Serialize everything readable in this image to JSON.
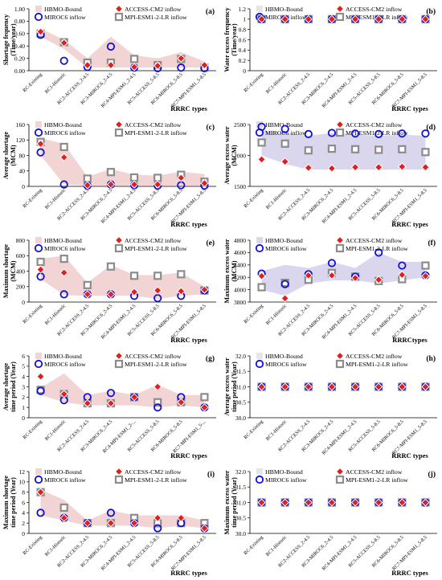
{
  "legend_labels": {
    "hbmo": "HBMO-Bound",
    "access": "ACCESS-CM2 inflow",
    "miroc": "MIROC6 inflow",
    "mpi": "MPI-ESM1-2-LR inflow"
  },
  "colors": {
    "hbmo_fill_red": "#f2d4d4",
    "hbmo_fill_purple": "#d9d6ee",
    "access": "#e0201f",
    "miroc": "#1010d0",
    "mpi": "#8c8c8c"
  },
  "chart_data": [
    {
      "type": "scatter",
      "panel_label": "(a)",
      "ylabel": [
        "Shortage fequency",
        "(Time/year)"
      ],
      "xlabel": "RRRC types",
      "ylim": [
        0,
        1
      ],
      "yticks": [
        "0.00",
        "0.20",
        "0.40",
        "0.60",
        "0.80",
        "1.00"
      ],
      "categories": [
        "RC-Existing",
        "RC1-Historic",
        "RC2-ACCESS_2-4.5",
        "RC3-MIROC6_2-4.5",
        "RC4-MPI-ESM1_2-4.5",
        "RC5-ACCESS_5-8.5",
        "RC6-MIROC6_5-8.5",
        "RC7-MPI-ESM1_5-8.5"
      ],
      "band_color": "red",
      "band_lower": [
        0.55,
        0.35,
        0.05,
        0.05,
        0.05,
        0.05,
        0.05,
        0.05
      ],
      "band_upper": [
        0.68,
        0.5,
        0.2,
        0.55,
        0.25,
        0.2,
        0.3,
        0.15
      ],
      "series": [
        {
          "key": "access",
          "values": [
            0.63,
            0.45,
            0.09,
            0.09,
            0.06,
            0.08,
            0.2,
            0.09
          ]
        },
        {
          "key": "miroc",
          "values": [
            0.58,
            0.16,
            0.06,
            0.39,
            0.05,
            0.04,
            0.05,
            0.04
          ]
        },
        {
          "key": "mpi",
          "values": [
            0.6,
            0.46,
            0.13,
            0.13,
            0.19,
            0.09,
            0.19,
            0.05
          ]
        }
      ]
    },
    {
      "type": "scatter",
      "panel_label": "(b)",
      "ylabel": [
        "Water excess frequency",
        "(Time/year)"
      ],
      "xlabel": "RRRC types",
      "ylim": [
        0,
        1.2
      ],
      "yticks": [
        "0",
        "0.2",
        "0.4",
        "0.6",
        "0.8",
        "1",
        "1.2"
      ],
      "categories": [
        "RC-Existing",
        "RC1-Historic",
        "RC2-ACCESS_2-4.5",
        "RC3-MIROC6_2-4.5",
        "RC4-MPI-ESM1_2-4.5",
        "RC5-ACCESS_5-8.5",
        "RC6-MIROC6_5-8.5",
        "RC7-MPI-ESM1_5-8.5"
      ],
      "band_color": "none",
      "band_lower": [],
      "band_upper": [],
      "series": [
        {
          "key": "access",
          "values": [
            1,
            1,
            1,
            1,
            1,
            1,
            1,
            1
          ]
        },
        {
          "key": "miroc",
          "values": [
            1,
            1,
            1,
            1,
            1,
            1,
            1,
            1
          ]
        },
        {
          "key": "mpi",
          "values": [
            1,
            1,
            1,
            1,
            1,
            1,
            1,
            1
          ]
        }
      ]
    },
    {
      "type": "scatter",
      "panel_label": "(c)",
      "ylabel": [
        "Average shortage",
        "(MCM)"
      ],
      "xlabel": "RRRC types",
      "ylim": [
        0,
        160
      ],
      "yticks": [
        "0",
        "40",
        "80",
        "120",
        "160"
      ],
      "categories": [
        "RC-Existing",
        "RC1-Historic",
        "RC2-ACCESS_2-4.5",
        "RC3-MIROC6_2-4.5",
        "RC4-MPI-ESM1_2-4.5",
        "RC5-ACCESS_5-8.5",
        "RC6-MIROC6_5-8.5",
        "RC7-MPI-ESM1_5-8.5"
      ],
      "band_color": "red",
      "band_lower": [
        80,
        5,
        2,
        2,
        2,
        2,
        2,
        2
      ],
      "band_upper": [
        125,
        110,
        25,
        45,
        30,
        28,
        38,
        32
      ],
      "series": [
        {
          "key": "access",
          "values": [
            110,
            75,
            3,
            5,
            5,
            5,
            22,
            8
          ]
        },
        {
          "key": "miroc",
          "values": [
            88,
            5,
            2,
            5,
            3,
            2,
            3,
            2
          ]
        },
        {
          "key": "mpi",
          "values": [
            115,
            102,
            20,
            37,
            23,
            22,
            30,
            12
          ]
        }
      ]
    },
    {
      "type": "scatter",
      "panel_label": "(d)",
      "ylabel": [
        "Average excess water",
        "(MCM)"
      ],
      "xlabel": "RRRC types",
      "ylim": [
        1500,
        2600
      ],
      "yticks": [
        "1500",
        "2000",
        "2500"
      ],
      "categories": [
        "RC-Existing",
        "RC1-Historic",
        "RC2-ACCESS_2-4.5",
        "RC3-MIROC6_2-4.5",
        "RC4-MPI-ESM1_2-4.5",
        "RC5-ACCESS_5-8.5",
        "RC6-MIROC6_5-8.5",
        "RC7-MPI-ESM1_5-8.5"
      ],
      "band_color": "purple",
      "band_lower": [
        2050,
        1900,
        1800,
        1800,
        1800,
        1800,
        1800,
        1800
      ],
      "band_upper": [
        2500,
        2450,
        2400,
        2450,
        2420,
        2400,
        2420,
        2400
      ],
      "series": [
        {
          "key": "access",
          "values": [
            1980,
            1940,
            1830,
            1820,
            1840,
            1840,
            1850,
            1840
          ]
        },
        {
          "key": "miroc",
          "values": [
            2560,
            2520,
            2430,
            2450,
            2440,
            2430,
            2440,
            2440
          ]
        },
        {
          "key": "mpi",
          "values": [
            2280,
            2260,
            2140,
            2170,
            2160,
            2150,
            2160,
            2110
          ]
        }
      ]
    },
    {
      "type": "scatter",
      "panel_label": "(e)",
      "ylabel": [
        "Maximum shortage",
        "(MCM)"
      ],
      "xlabel": "RRRC types",
      "ylim": [
        0,
        800
      ],
      "yticks": [
        "0",
        "200",
        "400",
        "600",
        "800"
      ],
      "categories": [
        "RC-Existing",
        "RC1-Historic",
        "RC2-ACCESS_2-4.5",
        "RC3-MIROC6_2-4.5",
        "RC4-MPI-ESM1_2-4.5",
        "RC5-ACCESS_5-8.5",
        "RC6-MIROC6_5-8.5",
        "RC7-MPI-ESM1_5-8.5"
      ],
      "band_color": "red",
      "band_lower": [
        300,
        90,
        80,
        80,
        80,
        40,
        80,
        100
      ],
      "band_upper": [
        560,
        600,
        250,
        480,
        350,
        350,
        380,
        200
      ],
      "series": [
        {
          "key": "access",
          "values": [
            420,
            380,
            100,
            100,
            130,
            150,
            140,
            160
          ]
        },
        {
          "key": "miroc",
          "values": [
            330,
            100,
            100,
            100,
            80,
            50,
            80,
            150
          ]
        },
        {
          "key": "mpi",
          "values": [
            520,
            560,
            220,
            460,
            340,
            340,
            360,
            150
          ]
        }
      ]
    },
    {
      "type": "scatter",
      "panel_label": "(f)",
      "ylabel": [
        "Maximum excess water",
        "(MCM)"
      ],
      "xlabel": "RRRCtypes",
      "ylim": [
        3800,
        4800
      ],
      "yticks": [
        "3800",
        "4000",
        "4200",
        "4400",
        "4600",
        "4800"
      ],
      "categories": [
        "RC-Existing",
        "RC1-Historic",
        "RC2-ACCESS_2-4.5",
        "RC3-MIROC6_2-4.5",
        "RC4-MPI-ESM1_2-4.5",
        "RC5-ACCESS_5-8.5",
        "RC6-MIROC6_5-8.5",
        "RC7-MPI-ESM1_5-8.5"
      ],
      "band_color": "purple",
      "band_lower": [
        4000,
        3900,
        4100,
        4150,
        4150,
        4100,
        4150,
        4200
      ],
      "band_upper": [
        4300,
        4400,
        4350,
        4450,
        4350,
        4600,
        4450,
        4450
      ],
      "series": [
        {
          "key": "access",
          "values": [
            4220,
            3860,
            4230,
            4230,
            4190,
            4160,
            4240,
            4220
          ]
        },
        {
          "key": "miroc",
          "values": [
            4260,
            4090,
            4250,
            4430,
            4210,
            4600,
            4390,
            4230
          ]
        },
        {
          "key": "mpi",
          "values": [
            4040,
            4110,
            4160,
            4270,
            4210,
            4140,
            4170,
            4390
          ]
        }
      ]
    },
    {
      "type": "scatter",
      "panel_label": "(g)",
      "ylabel": [
        "Average shortage",
        "time period (Year)"
      ],
      "xlabel": "RRRC types",
      "ylim": [
        0,
        6
      ],
      "yticks": [
        "0",
        "1",
        "2",
        "3",
        "4",
        "5",
        "6"
      ],
      "categories": [
        "RC-Existing",
        "RC1-Historic",
        "RC2-ACCESS_2-4.5",
        "RC3-MIROC6_2-4.5",
        "RC4-MPI-ESM1_2-...",
        "RC5-ACCESS_5-8.5",
        "RC6-MIROC6_5-8.5",
        "RC7-MPI-ESM1_5-..."
      ],
      "band_color": "red",
      "band_lower": [
        2.2,
        1.5,
        1.2,
        1.2,
        1.2,
        1,
        1.2,
        1
      ],
      "band_upper": [
        2.9,
        4.3,
        2.2,
        2.6,
        2.2,
        3.2,
        2.2,
        2.2
      ],
      "series": [
        {
          "key": "access",
          "values": [
            4,
            2.3,
            1.4,
            1.4,
            2,
            3,
            1.5,
            1
          ]
        },
        {
          "key": "miroc",
          "values": [
            2.6,
            1.7,
            2,
            2.4,
            2,
            1,
            2,
            1
          ]
        },
        {
          "key": "mpi",
          "values": [
            2.7,
            2.3,
            1.4,
            1.4,
            2,
            1.5,
            1.5,
            2
          ]
        }
      ]
    },
    {
      "type": "scatter",
      "panel_label": "(h)",
      "ylabel": [
        "Average excess water",
        "time period (Year)"
      ],
      "xlabel": "RRRC types",
      "ylim": [
        30,
        32
      ],
      "yticks": [
        "30.0",
        "30.5",
        "31.0",
        "31.5",
        "32.0"
      ],
      "categories": [
        "RC-Existing",
        "RC1-Historic",
        "RC2-ACCESS_2-4.5",
        "RC3-MIROC6_2-4.5",
        "RC4-MPI-ESM1_2-4.5",
        "RC5-ACCESS_5-8.5",
        "RC6-MIROC6_5-8.5",
        "RC7-MPI-ESM1_5-8.5"
      ],
      "band_color": "none",
      "band_lower": [],
      "band_upper": [],
      "series": [
        {
          "key": "access",
          "values": [
            31,
            31,
            31,
            31,
            31,
            31,
            31,
            31
          ]
        },
        {
          "key": "miroc",
          "values": [
            31,
            31,
            31,
            31,
            31,
            31,
            31,
            31
          ]
        },
        {
          "key": "mpi",
          "values": [
            31,
            31,
            31,
            31,
            31,
            31,
            31,
            31
          ]
        }
      ]
    },
    {
      "type": "scatter",
      "panel_label": "(i)",
      "ylabel": [
        "Maximum shortage",
        "time period (Year)"
      ],
      "xlabel": "RRRC types",
      "ylim": [
        0,
        12
      ],
      "yticks": [
        "0",
        "2",
        "4",
        "6",
        "8",
        "10",
        "12"
      ],
      "categories": [
        "RC-Existing",
        "RC1-Historic",
        "RC2-ACCESS_2-4.5",
        "RC3-MIROC6_2-4.5",
        "RC4-MPI-ESM1_2-4.5",
        "RC5-ACCESS_5-8.5",
        "RC6-MIROC6_5-8.5",
        "RC7-MPI-ESM1_5-8.5"
      ],
      "band_color": "red",
      "band_lower": [
        3.5,
        2.5,
        1.5,
        1.5,
        1.5,
        1,
        1.5,
        1
      ],
      "band_upper": [
        8.5,
        6.5,
        2.5,
        4.5,
        3.5,
        3.5,
        3.5,
        2.5
      ],
      "series": [
        {
          "key": "access",
          "values": [
            8,
            3,
            2,
            2,
            2,
            3,
            3,
            1
          ]
        },
        {
          "key": "miroc",
          "values": [
            4,
            3,
            2,
            4,
            2,
            1,
            2,
            1
          ]
        },
        {
          "key": "mpi",
          "values": [
            8,
            5,
            2,
            2,
            3,
            2,
            2,
            2
          ]
        }
      ]
    },
    {
      "type": "scatter",
      "panel_label": "(j)",
      "ylabel": [
        "Maximum excess water",
        "time period (Year)"
      ],
      "xlabel": "RRRC types",
      "ylim": [
        30,
        32
      ],
      "yticks": [
        "30.0",
        "30.5",
        "31.0",
        "31.5",
        "32.0"
      ],
      "categories": [
        "RC-Existing",
        "RC1-Historic",
        "RC2-ACCESS_2-4.5",
        "RC3-MIROC6_2-4.5",
        "RC4-MPI-ESM1_2-4.5",
        "RC5-ACCESS_5-8.5",
        "RC6-MIROC6_5-8.5",
        "RC7-MPI-ESM1_5-8.5"
      ],
      "band_color": "none",
      "band_lower": [],
      "band_upper": [],
      "series": [
        {
          "key": "access",
          "values": [
            31,
            31,
            31,
            31,
            31,
            31,
            31,
            31
          ]
        },
        {
          "key": "miroc",
          "values": [
            31,
            31,
            31,
            31,
            31,
            31,
            31,
            31
          ]
        },
        {
          "key": "mpi",
          "values": [
            31,
            31,
            31,
            31,
            31,
            31,
            31,
            31
          ]
        }
      ]
    }
  ]
}
